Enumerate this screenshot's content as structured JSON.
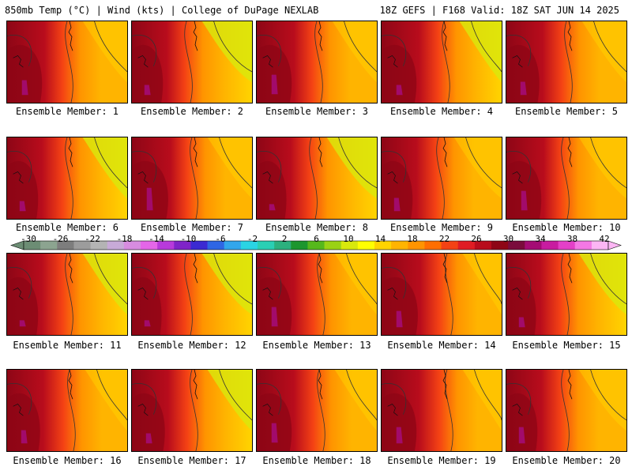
{
  "header": {
    "left": "850mb Temp (°C) | Wind (kts) | College of DuPage NEXLAB",
    "right": "18Z GEFS | F168 Valid: 18Z SAT JUN 14 2025"
  },
  "members": [
    {
      "label": "Ensemble Member: 1",
      "hot": 0.55,
      "band": 0.55,
      "lobe": 0.45
    },
    {
      "label": "Ensemble Member: 2",
      "hot": 0.45,
      "band": 0.45,
      "lobe": 0.3
    },
    {
      "label": "Ensemble Member: 3",
      "hot": 0.55,
      "band": 0.55,
      "lobe": 0.6
    },
    {
      "label": "Ensemble Member: 4",
      "hot": 0.55,
      "band": 0.6,
      "lobe": 0.3
    },
    {
      "label": "Ensemble Member: 5",
      "hot": 0.5,
      "band": 0.55,
      "lobe": 0.4
    },
    {
      "label": "Ensemble Member: 6",
      "hot": 0.45,
      "band": 0.55,
      "lobe": 0.3
    },
    {
      "label": "Ensemble Member: 7",
      "hot": 0.6,
      "band": 0.55,
      "lobe": 0.7
    },
    {
      "label": "Ensemble Member: 8",
      "hot": 0.4,
      "band": 0.45,
      "lobe": 0.2
    },
    {
      "label": "Ensemble Member: 9",
      "hot": 0.45,
      "band": 0.5,
      "lobe": 0.4
    },
    {
      "label": "Ensemble Member: 10",
      "hot": 0.55,
      "band": 0.5,
      "lobe": 0.6
    },
    {
      "label": "Ensemble Member: 11",
      "hot": 0.45,
      "band": 0.55,
      "lobe": 0.2
    },
    {
      "label": "Ensemble Member: 12",
      "hot": 0.4,
      "band": 0.45,
      "lobe": 0.2
    },
    {
      "label": "Ensemble Member: 13",
      "hot": 0.55,
      "band": 0.6,
      "lobe": 0.6
    },
    {
      "label": "Ensemble Member: 14",
      "hot": 0.6,
      "band": 0.65,
      "lobe": 0.5
    },
    {
      "label": "Ensemble Member: 15",
      "hot": 0.4,
      "band": 0.5,
      "lobe": 0.3
    },
    {
      "label": "Ensemble Member: 16",
      "hot": 0.5,
      "band": 0.6,
      "lobe": 0.4
    },
    {
      "label": "Ensemble Member: 17",
      "hot": 0.5,
      "band": 0.55,
      "lobe": 0.3
    },
    {
      "label": "Ensemble Member: 18",
      "hot": 0.55,
      "band": 0.6,
      "lobe": 0.6
    },
    {
      "label": "Ensemble Member: 19",
      "hot": 0.55,
      "band": 0.65,
      "lobe": 0.5
    },
    {
      "label": "Ensemble Member: 20",
      "hot": 0.45,
      "band": 0.5,
      "lobe": 0.5
    }
  ],
  "colorbar": {
    "labels": [
      "-30",
      "-26",
      "-22",
      "-18",
      "-14",
      "-10",
      "-6",
      "-2",
      "2",
      "6",
      "10",
      "14",
      "18",
      "22",
      "26",
      "30",
      "34",
      "38",
      "42"
    ],
    "colors": [
      "#6c8d74",
      "#8ca490",
      "#7d7d7d",
      "#9c9c9c",
      "#b4b4b4",
      "#c8aad8",
      "#d78ce0",
      "#e466e8",
      "#b83adb",
      "#7f24c8",
      "#3b2ad2",
      "#2f66e4",
      "#32a6ec",
      "#2ad4e4",
      "#2acfb4",
      "#2cb07e",
      "#1d962e",
      "#56b81c",
      "#9ad214",
      "#d8e80c",
      "#ffff00",
      "#ffd400",
      "#ffb400",
      "#ff9400",
      "#ff6e00",
      "#f44214",
      "#e01c24",
      "#b80c1c",
      "#8e0616",
      "#7a0c3c",
      "#a40c74",
      "#c81ca0",
      "#e440c8",
      "#f478e4",
      "#fcb6f4"
    ]
  }
}
